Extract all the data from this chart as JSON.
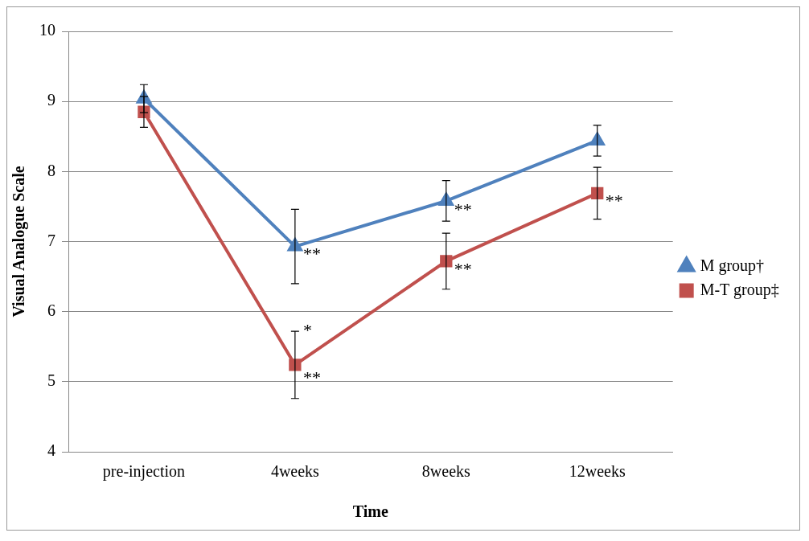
{
  "chart_data": {
    "type": "line",
    "xlabel": "Time",
    "ylabel": "Visual Analogue Scale",
    "categories": [
      "pre-injection",
      "4weeks",
      "8weeks",
      "12weeks"
    ],
    "series": [
      {
        "name": "M group†",
        "color": "#4f81bd",
        "marker": "triangle",
        "values": [
          9.04,
          6.93,
          7.58,
          8.44
        ],
        "errors": [
          0.2,
          0.53,
          0.29,
          0.22
        ]
      },
      {
        "name": "M-T group‡",
        "color": "#c0504d",
        "marker": "square",
        "values": [
          8.85,
          5.24,
          6.72,
          7.69
        ],
        "errors": [
          0.22,
          0.48,
          0.4,
          0.37
        ]
      }
    ],
    "ylim": [
      4,
      10
    ],
    "yticks": [
      4,
      5,
      6,
      7,
      8,
      9,
      10
    ],
    "grid": "y",
    "legend": "right",
    "line_style": "solid",
    "annotations": [
      {
        "text": "**",
        "x": "4weeks",
        "y": 6.81
      },
      {
        "text": "**",
        "x": "8weeks",
        "y": 7.44
      },
      {
        "text": "*",
        "x": "4weeks",
        "y": 5.72
      },
      {
        "text": "**",
        "x": "4weeks",
        "y": 5.04
      },
      {
        "text": "**",
        "x": "8weeks",
        "y": 6.59
      },
      {
        "text": "**",
        "x": "12weeks",
        "y": 7.56
      }
    ]
  }
}
